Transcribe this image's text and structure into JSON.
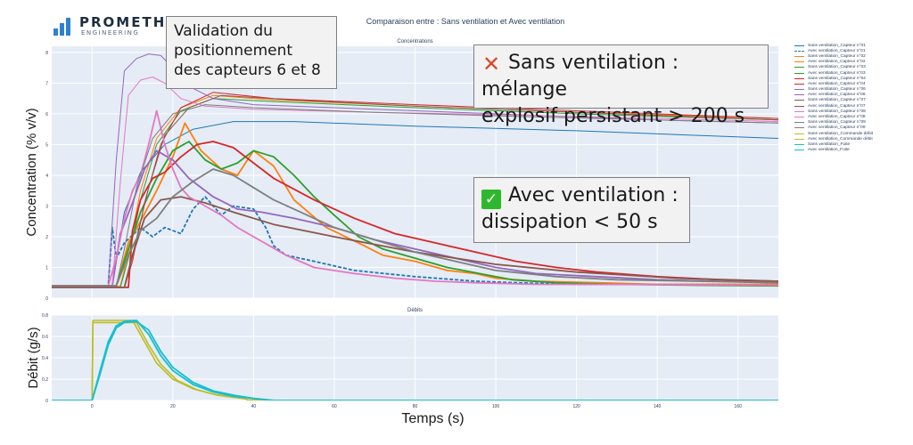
{
  "logo": {
    "name": "PROMETHYS",
    "subtitle": "ENGINEERING"
  },
  "figure_title": "Comparaison entre : Sans ventilation et Avec ventilation",
  "callouts": {
    "validation": [
      "Validation du",
      "positionnement",
      "des capteurs 6 et 8"
    ],
    "sans": [
      "Sans ventilation : mélange",
      "explosif persistant > 200 s"
    ],
    "avec": [
      "Avec ventilation :",
      "dissipation < 50 s"
    ],
    "sans_icon": "cross-mark-icon",
    "avec_icon": "check-mark-icon"
  },
  "colors": {
    "plot_bg": "#e5ecf6",
    "cross": "#d9472b",
    "check": "#2eb82e"
  },
  "legend": [
    {
      "name": "Sans ventilation_Capteur n°01",
      "color": "#1f77b4",
      "dash": "solid"
    },
    {
      "name": "Avec ventilation_Capteur n°01",
      "color": "#1f77b4",
      "dash": "dash"
    },
    {
      "name": "Sans ventilation_Capteur n°02",
      "color": "#ff7f0e",
      "dash": "solid"
    },
    {
      "name": "Avec ventilation_Capteur n°02",
      "color": "#ff7f0e",
      "dash": "solid"
    },
    {
      "name": "Sans ventilation_Capteur n°03",
      "color": "#2ca02c",
      "dash": "solid"
    },
    {
      "name": "Avec ventilation_Capteur n°03",
      "color": "#2ca02c",
      "dash": "solid"
    },
    {
      "name": "Sans ventilation_Capteur n°04",
      "color": "#d62728",
      "dash": "solid"
    },
    {
      "name": "Avec ventilation_Capteur n°04",
      "color": "#d62728",
      "dash": "solid"
    },
    {
      "name": "Sans ventilation_Capteur n°06",
      "color": "#9467bd",
      "dash": "solid"
    },
    {
      "name": "Avec ventilation_Capteur n°06",
      "color": "#9467bd",
      "dash": "solid"
    },
    {
      "name": "Sans ventilation_Capteur n°07",
      "color": "#8c564b",
      "dash": "solid"
    },
    {
      "name": "Avec ventilation_Capteur n°07",
      "color": "#8c564b",
      "dash": "solid"
    },
    {
      "name": "Sans ventilation_Capteur n°08",
      "color": "#e377c2",
      "dash": "solid"
    },
    {
      "name": "Avec ventilation_Capteur n°08",
      "color": "#e377c2",
      "dash": "solid"
    },
    {
      "name": "Sans ventilation_Capteur n°09",
      "color": "#7f7f7f",
      "dash": "solid"
    },
    {
      "name": "Avec ventilation_Capteur n°09",
      "color": "#7f7f7f",
      "dash": "solid"
    },
    {
      "name": "Sans ventilation_Commande débit",
      "color": "#bcbd22",
      "dash": "solid"
    },
    {
      "name": "Avec ventilation_Commande débit",
      "color": "#bcbd22",
      "dash": "solid"
    },
    {
      "name": "Sans ventilation_Fuite",
      "color": "#17becf",
      "dash": "solid"
    },
    {
      "name": "Avec ventilation_Fuite",
      "color": "#17becf",
      "dash": "solid"
    }
  ],
  "chart_data": [
    {
      "type": "line",
      "title": "Concentrations",
      "xlabel": "",
      "ylabel": "Concentration (% v/v)",
      "xlim": [
        -10,
        170
      ],
      "ylim": [
        0,
        8.2
      ],
      "xticks": [],
      "yticks": [
        0,
        1,
        2,
        3,
        4,
        5,
        6,
        7,
        8
      ],
      "grid": true,
      "series": [
        {
          "name": "Sans ventilation_Capteur n°01",
          "color": "#1f77b4",
          "width": 1.0,
          "x": [
            -10,
            5,
            6,
            8,
            12,
            18,
            25,
            35,
            50,
            80,
            120,
            150,
            170
          ],
          "y": [
            0.4,
            0.4,
            1.2,
            2.8,
            4.1,
            5.0,
            5.5,
            5.75,
            5.75,
            5.6,
            5.45,
            5.3,
            5.2
          ]
        },
        {
          "name": "Avec ventilation_Capteur n°01",
          "color": "#1f77b4",
          "width": 1.8,
          "dash": "4,2",
          "x": [
            -10,
            4,
            5,
            6,
            8,
            12,
            15,
            18,
            22,
            25,
            28,
            32,
            35,
            40,
            43,
            45,
            48,
            55,
            65,
            80,
            95,
            105,
            120,
            140,
            170
          ],
          "y": [
            0.4,
            0.4,
            2.3,
            1.3,
            1.8,
            2.3,
            2.0,
            2.3,
            2.1,
            2.9,
            3.3,
            2.7,
            3.0,
            2.9,
            2.3,
            1.7,
            1.4,
            1.2,
            0.9,
            0.7,
            0.55,
            0.5,
            0.45,
            0.45,
            0.45
          ]
        },
        {
          "name": "Sans ventilation_Capteur n°02",
          "color": "#ff7f0e",
          "width": 1.0,
          "x": [
            -10,
            7,
            9,
            12,
            16,
            22,
            30,
            45,
            80,
            120,
            170
          ],
          "y": [
            0.4,
            0.4,
            1.5,
            3.5,
            5.2,
            6.2,
            6.6,
            6.45,
            6.25,
            6.05,
            5.85
          ]
        },
        {
          "name": "Avec ventilation_Capteur n°02",
          "color": "#ff7f0e",
          "width": 1.8,
          "x": [
            -10,
            6,
            9,
            12,
            16,
            20,
            23,
            27,
            32,
            36,
            40,
            45,
            50,
            58,
            66,
            72,
            80,
            88,
            95,
            100,
            110,
            125,
            140,
            170
          ],
          "y": [
            0.4,
            0.4,
            1.8,
            2.5,
            3.5,
            4.6,
            5.7,
            4.8,
            4.2,
            4.0,
            4.8,
            4.3,
            3.2,
            2.3,
            1.8,
            1.4,
            1.2,
            0.9,
            0.8,
            0.65,
            0.55,
            0.5,
            0.45,
            0.45
          ]
        },
        {
          "name": "Sans ventilation_Capteur n°03",
          "color": "#2ca02c",
          "width": 1.0,
          "x": [
            -10,
            7,
            9,
            12,
            16,
            22,
            30,
            45,
            80,
            120,
            170
          ],
          "y": [
            0.35,
            0.35,
            1.3,
            3.2,
            5.0,
            6.1,
            6.5,
            6.4,
            6.2,
            6.0,
            5.8
          ]
        },
        {
          "name": "Avec ventilation_Capteur n°03",
          "color": "#2ca02c",
          "width": 1.8,
          "x": [
            -10,
            6,
            9,
            12,
            16,
            20,
            24,
            28,
            32,
            36,
            40,
            45,
            50,
            55,
            60,
            66,
            72,
            80,
            88,
            96,
            104,
            115,
            130,
            150,
            170
          ],
          "y": [
            0.4,
            0.4,
            1.6,
            2.8,
            3.9,
            4.8,
            5.1,
            4.5,
            4.2,
            4.4,
            4.8,
            4.6,
            4.0,
            3.3,
            2.7,
            2.0,
            1.6,
            1.3,
            1.0,
            0.8,
            0.6,
            0.5,
            0.45,
            0.42,
            0.4
          ]
        },
        {
          "name": "Sans ventilation_Capteur n°04",
          "color": "#d62728",
          "width": 1.0,
          "x": [
            -10,
            8,
            10,
            13,
            17,
            22,
            30,
            45,
            80,
            120,
            170
          ],
          "y": [
            0.35,
            0.35,
            1.2,
            3.1,
            5.0,
            6.2,
            6.7,
            6.5,
            6.3,
            6.1,
            5.85
          ]
        },
        {
          "name": "Avec ventilation_Capteur n°04",
          "color": "#d62728",
          "width": 1.8,
          "x": [
            -10,
            9,
            10,
            12,
            15,
            18,
            22,
            26,
            30,
            35,
            40,
            45,
            55,
            65,
            75,
            85,
            95,
            105,
            115,
            125,
            140,
            155,
            170
          ],
          "y": [
            0.35,
            0.35,
            2.2,
            3.2,
            3.9,
            4.1,
            4.6,
            5.0,
            5.1,
            4.9,
            4.4,
            3.9,
            3.2,
            2.6,
            2.1,
            1.8,
            1.5,
            1.2,
            1.0,
            0.85,
            0.7,
            0.6,
            0.55
          ]
        },
        {
          "name": "Sans ventilation_Capteur n°06",
          "color": "#9467bd",
          "width": 1.0,
          "x": [
            -10,
            4,
            6,
            8,
            11,
            14,
            17,
            20,
            24,
            30,
            40,
            60,
            100,
            140,
            170
          ],
          "y": [
            0.4,
            0.4,
            4.5,
            7.4,
            7.8,
            7.95,
            7.9,
            7.5,
            6.9,
            6.5,
            6.3,
            6.2,
            6.0,
            5.8,
            5.7
          ]
        },
        {
          "name": "Avec ventilation_Capteur n°06",
          "color": "#9467bd",
          "width": 1.8,
          "x": [
            -10,
            5,
            7,
            10,
            13,
            16,
            20,
            24,
            30,
            36,
            42,
            50,
            60,
            70,
            80,
            90,
            100,
            110,
            125,
            140,
            155,
            170
          ],
          "y": [
            0.4,
            0.4,
            2.1,
            3.1,
            4.2,
            4.8,
            4.5,
            3.9,
            3.3,
            2.9,
            2.8,
            2.6,
            2.3,
            1.9,
            1.6,
            1.3,
            1.0,
            0.8,
            0.7,
            0.6,
            0.55,
            0.5
          ]
        },
        {
          "name": "Sans ventilation_Capteur n°07",
          "color": "#8c564b",
          "width": 1.0,
          "x": [
            -10,
            8,
            10,
            14,
            18,
            24,
            32,
            50,
            80,
            120,
            170
          ],
          "y": [
            0.35,
            0.35,
            1.4,
            3.6,
            5.3,
            6.2,
            6.6,
            6.45,
            6.25,
            6.05,
            5.8
          ]
        },
        {
          "name": "Avec ventilation_Capteur n°07",
          "color": "#8c564b",
          "width": 1.8,
          "x": [
            -10,
            8,
            10,
            13,
            17,
            22,
            28,
            35,
            45,
            60,
            80,
            100,
            120,
            145,
            170
          ],
          "y": [
            0.35,
            0.35,
            1.4,
            2.6,
            3.2,
            3.3,
            3.1,
            2.8,
            2.4,
            2.0,
            1.5,
            1.1,
            0.85,
            0.65,
            0.55
          ]
        },
        {
          "name": "Sans ventilation_Capteur n°08",
          "color": "#e377c2",
          "width": 1.0,
          "x": [
            -10,
            5,
            7,
            9,
            12,
            15,
            18,
            22,
            28,
            40,
            70,
            110,
            170
          ],
          "y": [
            0.4,
            0.4,
            3.8,
            6.6,
            7.1,
            7.2,
            7.0,
            6.5,
            6.25,
            6.15,
            6.05,
            5.95,
            5.75
          ]
        },
        {
          "name": "Avec ventilation_Capteur n°08",
          "color": "#e377c2",
          "width": 1.8,
          "x": [
            -10,
            4,
            6,
            8,
            10,
            12,
            14,
            16,
            18,
            20,
            22,
            24,
            28,
            32,
            36,
            40,
            44,
            48,
            55,
            65,
            75,
            85,
            95,
            110,
            130,
            170
          ],
          "y": [
            0.4,
            0.4,
            1.3,
            2.6,
            3.5,
            4.0,
            5.0,
            6.1,
            5.0,
            4.2,
            3.6,
            3.3,
            3.0,
            2.7,
            2.3,
            2.0,
            1.7,
            1.4,
            1.0,
            0.8,
            0.65,
            0.55,
            0.5,
            0.45,
            0.45,
            0.42
          ]
        },
        {
          "name": "Sans ventilation_Capteur n°09",
          "color": "#7f7f7f",
          "width": 1.0,
          "x": [
            -10,
            6,
            8,
            11,
            15,
            20,
            28,
            40,
            70,
            110,
            170
          ],
          "y": [
            0.4,
            0.4,
            1.6,
            3.6,
            5.2,
            6.0,
            6.3,
            6.2,
            6.05,
            5.9,
            5.7
          ]
        },
        {
          "name": "Avec ventilation_Capteur n°09",
          "color": "#7f7f7f",
          "width": 1.8,
          "x": [
            -10,
            6,
            9,
            12,
            16,
            20,
            25,
            30,
            35,
            40,
            45,
            50,
            55,
            60,
            70,
            80,
            90,
            100,
            115,
            130,
            150,
            170
          ],
          "y": [
            0.4,
            0.4,
            1.4,
            2.2,
            2.6,
            3.3,
            3.8,
            4.2,
            4.0,
            3.6,
            3.2,
            2.9,
            2.6,
            2.3,
            1.9,
            1.5,
            1.2,
            0.9,
            0.7,
            0.6,
            0.55,
            0.5
          ]
        }
      ]
    },
    {
      "type": "line",
      "title": "Débits",
      "xlabel": "Temps (s)",
      "ylabel": "Débit (g/s)",
      "xlim": [
        -10,
        170
      ],
      "ylim": [
        0,
        0.8
      ],
      "xticks": [
        0,
        20,
        40,
        60,
        80,
        100,
        120,
        140,
        160
      ],
      "yticks": [
        0,
        0.2,
        0.4,
        0.6,
        0.8
      ],
      "grid": true,
      "series": [
        {
          "name": "Sans ventilation_Commande débit",
          "color": "#bcbd22",
          "width": 1.6,
          "x": [
            -10,
            0,
            0.2,
            10,
            13,
            16,
            20,
            25,
            30,
            35,
            38,
            38.5,
            50,
            170
          ],
          "y": [
            0,
            0,
            0.75,
            0.75,
            0.55,
            0.35,
            0.2,
            0.11,
            0.06,
            0.03,
            0.02,
            0.005,
            0,
            0
          ]
        },
        {
          "name": "Avec ventilation_Commande débit",
          "color": "#bcbd22",
          "width": 1.6,
          "x": [
            -10,
            0,
            0.2,
            11,
            14,
            17,
            21,
            26,
            31,
            36,
            38,
            38.5,
            50,
            170
          ],
          "y": [
            0,
            0,
            0.73,
            0.73,
            0.52,
            0.34,
            0.19,
            0.1,
            0.05,
            0.025,
            0.015,
            0.005,
            0,
            0
          ]
        },
        {
          "name": "Sans ventilation_Fuite",
          "color": "#17becf",
          "width": 1.8,
          "x": [
            -10,
            0,
            2,
            4,
            6,
            8,
            11,
            14,
            17,
            20,
            25,
            30,
            35,
            40,
            45,
            170
          ],
          "y": [
            0,
            0,
            0.28,
            0.55,
            0.7,
            0.74,
            0.75,
            0.62,
            0.42,
            0.28,
            0.15,
            0.08,
            0.04,
            0.02,
            0.0,
            0
          ]
        },
        {
          "name": "Avec ventilation_Fuite",
          "color": "#17becf",
          "width": 1.8,
          "x": [
            -10,
            0,
            2,
            4,
            6,
            8,
            11,
            14,
            17,
            20,
            25,
            30,
            35,
            40,
            45,
            170
          ],
          "y": [
            0,
            0,
            0.25,
            0.52,
            0.68,
            0.73,
            0.74,
            0.66,
            0.46,
            0.31,
            0.17,
            0.09,
            0.05,
            0.02,
            0.0,
            0
          ]
        }
      ]
    }
  ]
}
